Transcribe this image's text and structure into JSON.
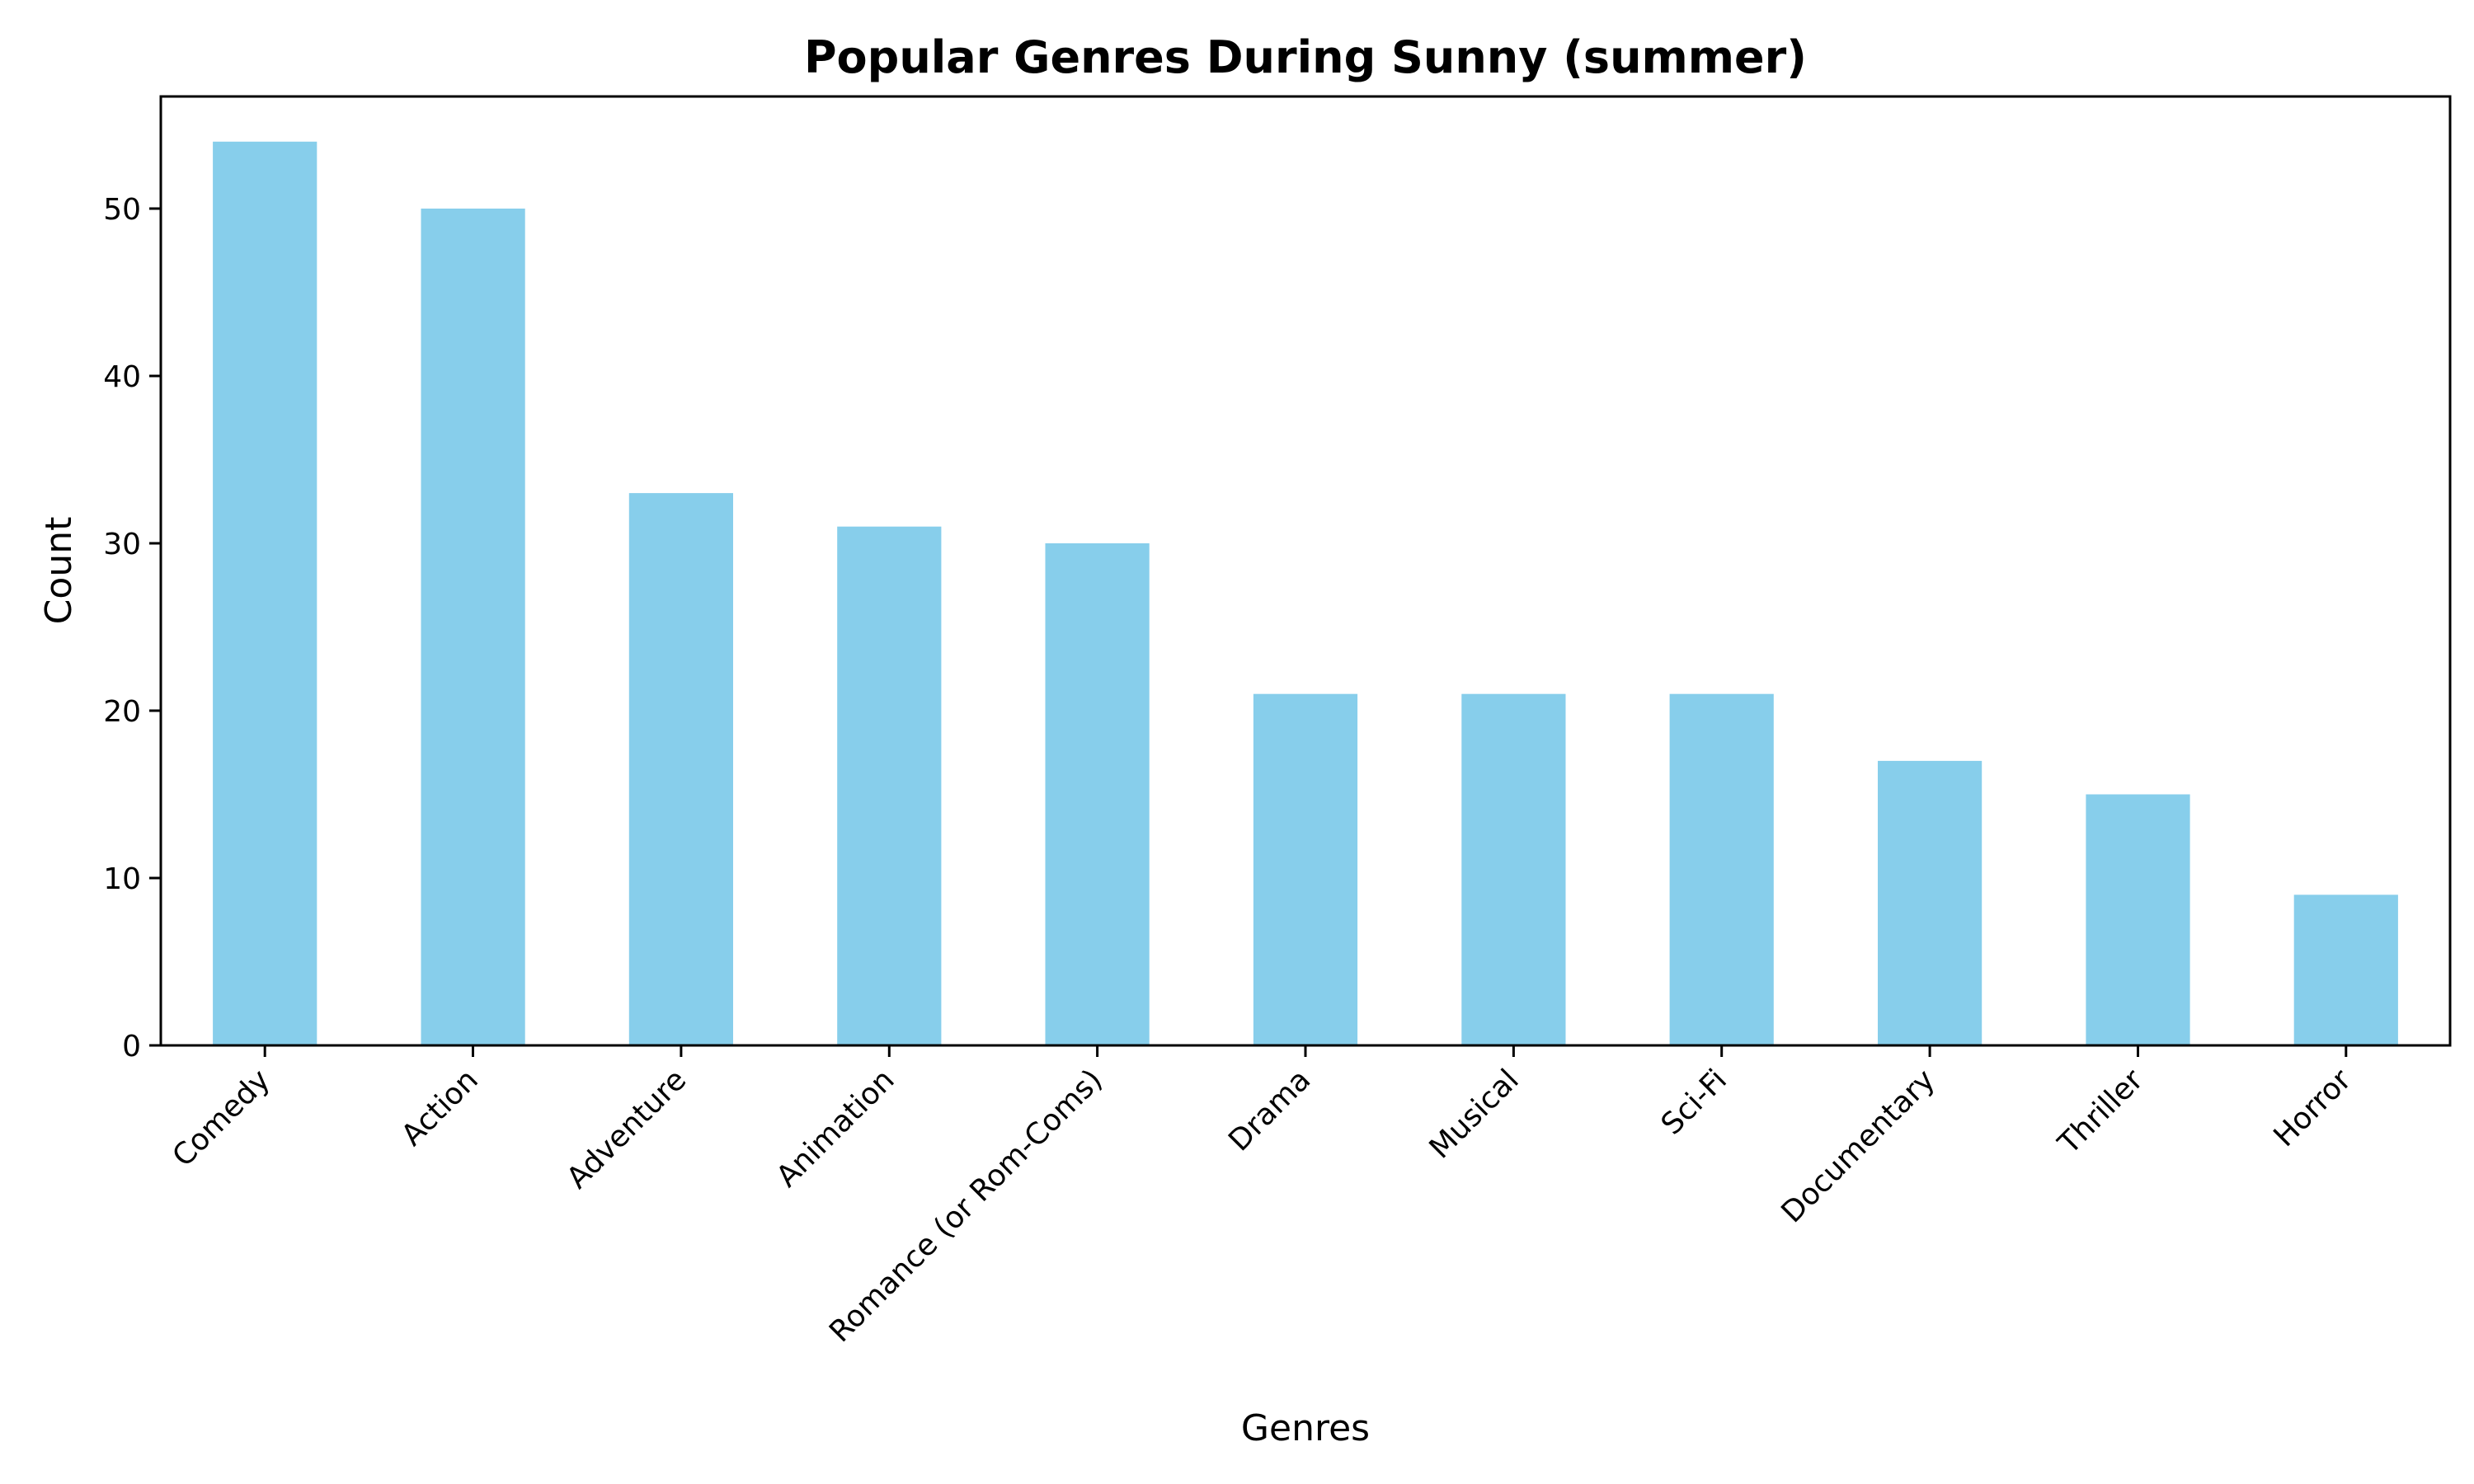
{
  "chart_data": {
    "type": "bar",
    "title": "Popular Genres During Sunny (summer)",
    "xlabel": "Genres",
    "ylabel": "Count",
    "categories": [
      "Comedy",
      "Action",
      "Adventure",
      "Animation",
      "Romance (or Rom-Coms)",
      "Drama",
      "Musical",
      "Sci-Fi",
      "Documentary",
      "Thriller",
      "Horror"
    ],
    "values": [
      54,
      50,
      33,
      31,
      30,
      21,
      21,
      21,
      17,
      15,
      9
    ],
    "ylim": [
      0,
      56.7
    ],
    "yticks": [
      0,
      10,
      20,
      30,
      40,
      50
    ],
    "grid": false,
    "bar_color": "#87CEEB",
    "xtick_rotation_deg": 45
  }
}
